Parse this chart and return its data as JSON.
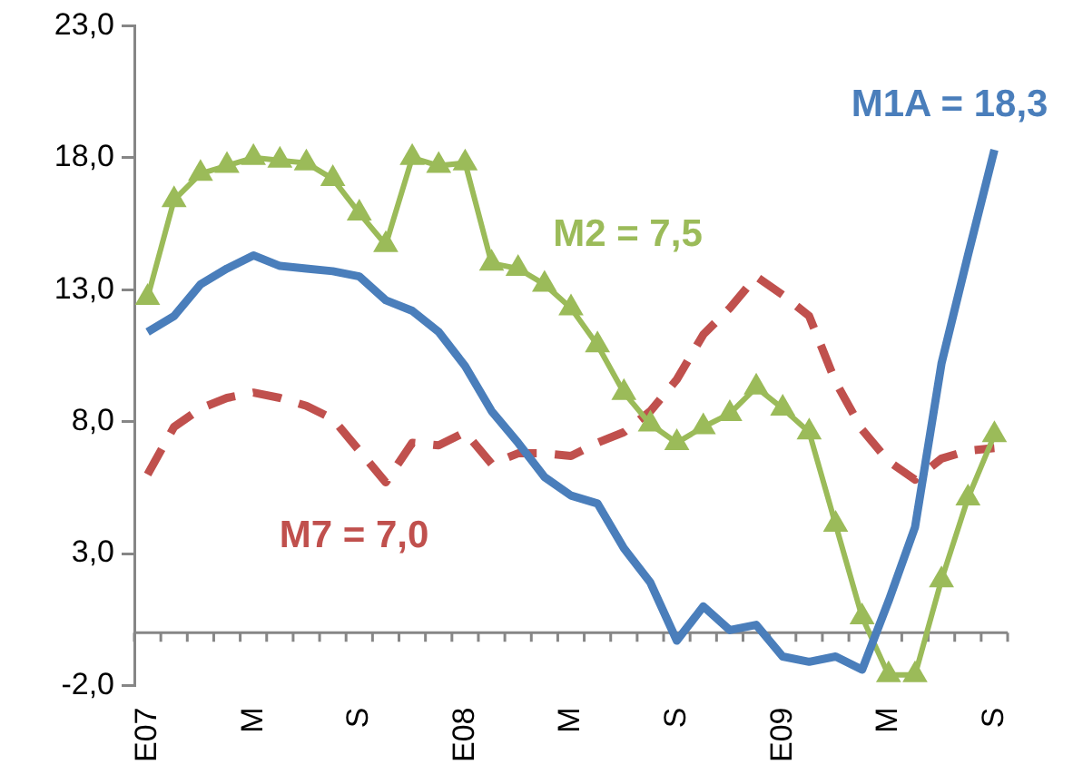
{
  "chart_data": {
    "type": "line",
    "categories": [
      "E07",
      null,
      null,
      null,
      "M",
      null,
      null,
      null,
      "S",
      null,
      null,
      null,
      "E08",
      null,
      null,
      null,
      "M",
      null,
      null,
      null,
      "S",
      null,
      null,
      null,
      "E09",
      null,
      null,
      null,
      "M",
      null,
      null,
      null,
      "S"
    ],
    "ylim": [
      -2,
      23
    ],
    "yticks": [
      {
        "value": -2,
        "label": "-2,0"
      },
      {
        "value": 3,
        "label": "3,0"
      },
      {
        "value": 8,
        "label": "8,0"
      },
      {
        "value": 13,
        "label": "13,0"
      },
      {
        "value": 18,
        "label": "18,0"
      },
      {
        "value": 23,
        "label": "23,0"
      }
    ],
    "grid": false,
    "legend": false,
    "series": [
      {
        "name": "M1A = 18,3",
        "color": "#4a7ebb",
        "marker": "none",
        "line_style": "solid",
        "values": [
          11.4,
          12.0,
          13.2,
          13.8,
          14.3,
          13.9,
          13.8,
          13.7,
          13.5,
          12.6,
          12.2,
          11.4,
          10.1,
          8.4,
          7.2,
          5.9,
          5.2,
          4.9,
          3.2,
          1.9,
          -0.3,
          1.0,
          0.1,
          0.3,
          -0.9,
          -1.1,
          -0.9,
          -1.4,
          1.2,
          4.0,
          10.2,
          14.3,
          18.3
        ]
      },
      {
        "name": "M2 = 7,5",
        "color": "#9bbb59",
        "marker": "triangle",
        "line_style": "solid",
        "values": [
          12.7,
          16.4,
          17.4,
          17.7,
          18.0,
          17.9,
          17.8,
          17.2,
          15.9,
          14.7,
          18.0,
          17.7,
          17.8,
          14.0,
          13.8,
          13.2,
          12.3,
          10.9,
          9.1,
          7.9,
          7.2,
          7.8,
          8.3,
          9.3,
          8.5,
          7.6,
          4.1,
          0.6,
          -1.6,
          -1.6,
          2.0,
          5.1,
          7.5
        ]
      },
      {
        "name": "M7 = 7,0",
        "color": "#c0504d",
        "marker": "none",
        "line_style": "dashed",
        "values": [
          6.0,
          7.8,
          8.5,
          8.9,
          9.1,
          8.9,
          8.6,
          8.1,
          6.9,
          5.7,
          7.2,
          7.1,
          7.6,
          6.4,
          6.8,
          6.8,
          6.7,
          7.2,
          7.6,
          8.4,
          9.6,
          11.3,
          12.3,
          13.5,
          12.8,
          12.0,
          9.5,
          7.7,
          6.5,
          5.8,
          6.6,
          6.9,
          7.0
        ]
      }
    ]
  }
}
